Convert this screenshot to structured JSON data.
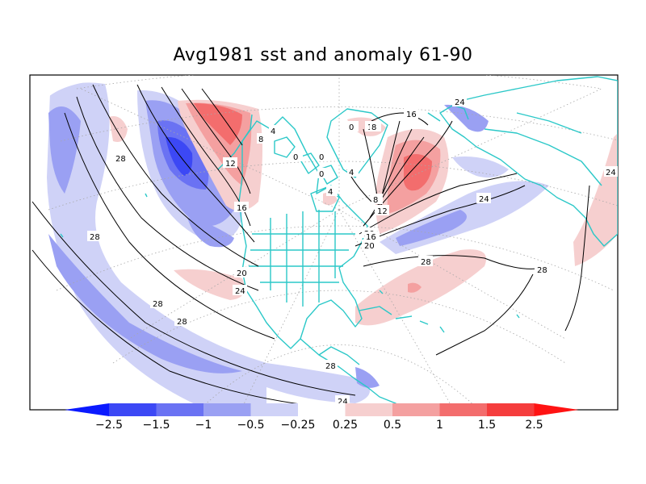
{
  "title": "Avg1981 sst and anomaly 61-90",
  "colors": {
    "coastline": "#2bc8c8",
    "contour": "#000000",
    "graticule": "#a8a8a8",
    "anom_neg_2_5": "#0b1aff",
    "anom_neg_1_5": "#3c48f5",
    "anom_neg_1": "#6a72f3",
    "anom_neg_0_5": "#9aa0f3",
    "anom_neg_0_25": "#cfd2f7",
    "anom_pos_0_25": "#f6cfcf",
    "anom_pos_0_5": "#f4a0a0",
    "anom_pos_1": "#f36d6d",
    "anom_pos_1_5": "#f53d3d",
    "anom_pos_2_5": "#ff1313"
  },
  "colorbar": {
    "labels": [
      "-2.5",
      "-1.5",
      "-1",
      "-0.5",
      "-0.25",
      "0.25",
      "0.5",
      "1",
      "1.5",
      "2.5"
    ],
    "fills": [
      "#0b1aff",
      "#3c48f5",
      "#6a72f3",
      "#9aa0f3",
      "#cfd2f7",
      "#ffffff",
      "#f6cfcf",
      "#f4a0a0",
      "#f36d6d",
      "#f53d3d",
      "#ff1313"
    ]
  },
  "contour_labels": [
    "28",
    "28",
    "28",
    "28",
    "28",
    "28",
    "28",
    "24",
    "24",
    "24",
    "24",
    "20",
    "20",
    "20",
    "16",
    "16",
    "16",
    "12",
    "12",
    "12",
    "8",
    "8",
    "4",
    "4",
    "0",
    "0",
    "0",
    "0",
    "4",
    "8",
    "16",
    "24"
  ]
}
